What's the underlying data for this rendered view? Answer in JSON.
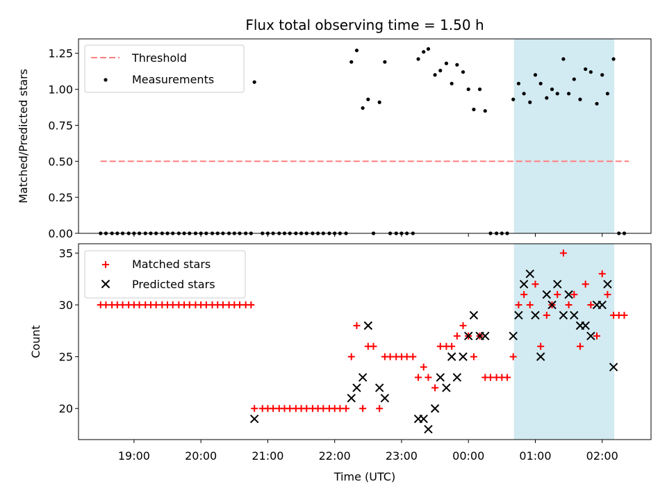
{
  "chart_data": [
    {
      "type": "scatter",
      "title": "Flux total observing time = 1.50 h",
      "xlabel": "",
      "ylabel": "Matched/Predicted stars",
      "ylim": [
        0,
        1.35
      ],
      "yticks": [
        "0.00",
        "0.25",
        "0.50",
        "0.75",
        "1.00",
        "1.25"
      ],
      "legend_position": "upper-left",
      "threshold": {
        "name": "Threshold",
        "value": 0.5,
        "x_start": -5.5,
        "x_end": 2.4,
        "color": "#ff7f7f"
      },
      "highlight_span": {
        "x_start": 0.68,
        "x_end": 2.18,
        "color": "#add8e6"
      },
      "series": [
        {
          "name": "Measurements",
          "color": "#000000",
          "points": [
            [
              -5.5,
              0
            ],
            [
              -5.42,
              0
            ],
            [
              -5.33,
              0
            ],
            [
              -5.25,
              0
            ],
            [
              -5.17,
              0
            ],
            [
              -5.08,
              0
            ],
            [
              -5.0,
              0
            ],
            [
              -4.92,
              0
            ],
            [
              -4.83,
              0
            ],
            [
              -4.75,
              0
            ],
            [
              -4.67,
              0
            ],
            [
              -4.58,
              0
            ],
            [
              -4.5,
              0
            ],
            [
              -4.42,
              0
            ],
            [
              -4.33,
              0
            ],
            [
              -4.25,
              0
            ],
            [
              -4.17,
              0
            ],
            [
              -4.08,
              0
            ],
            [
              -4.0,
              0
            ],
            [
              -3.92,
              0
            ],
            [
              -3.83,
              0
            ],
            [
              -3.75,
              0
            ],
            [
              -3.67,
              0
            ],
            [
              -3.58,
              0
            ],
            [
              -3.5,
              0
            ],
            [
              -3.42,
              0
            ],
            [
              -3.33,
              0
            ],
            [
              -3.25,
              0
            ],
            [
              -3.2,
              1.05
            ],
            [
              -3.08,
              0
            ],
            [
              -3.0,
              0
            ],
            [
              -2.92,
              0
            ],
            [
              -2.83,
              0
            ],
            [
              -2.75,
              0
            ],
            [
              -2.67,
              0
            ],
            [
              -2.58,
              0
            ],
            [
              -2.5,
              0
            ],
            [
              -2.42,
              0
            ],
            [
              -2.33,
              0
            ],
            [
              -2.25,
              0
            ],
            [
              -2.17,
              0
            ],
            [
              -2.08,
              0
            ],
            [
              -2.0,
              0
            ],
            [
              -1.92,
              0
            ],
            [
              -1.83,
              0
            ],
            [
              -1.75,
              1.19
            ],
            [
              -1.67,
              1.27
            ],
            [
              -1.58,
              0.87
            ],
            [
              -1.5,
              0.93
            ],
            [
              -1.42,
              0
            ],
            [
              -1.33,
              0.91
            ],
            [
              -1.25,
              1.19
            ],
            [
              -1.17,
              0
            ],
            [
              -1.08,
              0
            ],
            [
              -1.0,
              0
            ],
            [
              -0.92,
              0
            ],
            [
              -0.83,
              0
            ],
            [
              -0.75,
              1.21
            ],
            [
              -0.67,
              1.26
            ],
            [
              -0.6,
              1.28
            ],
            [
              -0.5,
              1.1
            ],
            [
              -0.42,
              1.13
            ],
            [
              -0.33,
              1.18
            ],
            [
              -0.25,
              1.04
            ],
            [
              -0.17,
              1.17
            ],
            [
              -0.08,
              1.12
            ],
            [
              0.0,
              1.0
            ],
            [
              0.08,
              0.86
            ],
            [
              0.17,
              1.0
            ],
            [
              0.25,
              0.85
            ],
            [
              0.33,
              0
            ],
            [
              0.42,
              0
            ],
            [
              0.5,
              0
            ],
            [
              0.58,
              0
            ],
            [
              0.67,
              0.93
            ],
            [
              0.75,
              1.04
            ],
            [
              0.83,
              0.97
            ],
            [
              0.92,
              0.91
            ],
            [
              1.0,
              1.1
            ],
            [
              1.08,
              1.04
            ],
            [
              1.17,
              0.94
            ],
            [
              1.25,
              1.0
            ],
            [
              1.33,
              0.97
            ],
            [
              1.42,
              1.21
            ],
            [
              1.5,
              0.97
            ],
            [
              1.58,
              1.07
            ],
            [
              1.67,
              0.93
            ],
            [
              1.75,
              1.14
            ],
            [
              1.83,
              1.12
            ],
            [
              1.92,
              0.9
            ],
            [
              2.0,
              1.1
            ],
            [
              2.08,
              0.97
            ],
            [
              2.17,
              1.21
            ],
            [
              2.25,
              0
            ],
            [
              2.33,
              0
            ]
          ]
        }
      ]
    },
    {
      "type": "scatter",
      "title": "",
      "xlabel": "Time (UTC)",
      "ylabel": "Count",
      "ylim": [
        17,
        35.9
      ],
      "yticks": [
        "20",
        "25",
        "30",
        "35"
      ],
      "xlim": [
        -5.83,
        2.73
      ],
      "x_reference": "00:00",
      "xticks": [
        {
          "value": -5,
          "label": "19:00"
        },
        {
          "value": -4,
          "label": "20:00"
        },
        {
          "value": -3,
          "label": "21:00"
        },
        {
          "value": -2,
          "label": "22:00"
        },
        {
          "value": -1,
          "label": "23:00"
        },
        {
          "value": 0,
          "label": "00:00"
        },
        {
          "value": 1,
          "label": "01:00"
        },
        {
          "value": 2,
          "label": "02:00"
        }
      ],
      "legend_position": "upper-left",
      "highlight_span": {
        "x_start": 0.68,
        "x_end": 2.18,
        "color": "#add8e6"
      },
      "series": [
        {
          "name": "Matched stars",
          "marker": "+",
          "color": "#ff0000",
          "points": [
            [
              -5.5,
              30
            ],
            [
              -5.42,
              30
            ],
            [
              -5.33,
              30
            ],
            [
              -5.25,
              30
            ],
            [
              -5.17,
              30
            ],
            [
              -5.08,
              30
            ],
            [
              -5.0,
              30
            ],
            [
              -4.92,
              30
            ],
            [
              -4.83,
              30
            ],
            [
              -4.75,
              30
            ],
            [
              -4.67,
              30
            ],
            [
              -4.58,
              30
            ],
            [
              -4.5,
              30
            ],
            [
              -4.42,
              30
            ],
            [
              -4.33,
              30
            ],
            [
              -4.25,
              30
            ],
            [
              -4.17,
              30
            ],
            [
              -4.08,
              30
            ],
            [
              -4.0,
              30
            ],
            [
              -3.92,
              30
            ],
            [
              -3.83,
              30
            ],
            [
              -3.75,
              30
            ],
            [
              -3.67,
              30
            ],
            [
              -3.58,
              30
            ],
            [
              -3.5,
              30
            ],
            [
              -3.42,
              30
            ],
            [
              -3.33,
              30
            ],
            [
              -3.25,
              30
            ],
            [
              -3.2,
              20
            ],
            [
              -3.08,
              20
            ],
            [
              -3.0,
              20
            ],
            [
              -2.92,
              20
            ],
            [
              -2.83,
              20
            ],
            [
              -2.75,
              20
            ],
            [
              -2.67,
              20
            ],
            [
              -2.58,
              20
            ],
            [
              -2.5,
              20
            ],
            [
              -2.42,
              20
            ],
            [
              -2.33,
              20
            ],
            [
              -2.25,
              20
            ],
            [
              -2.17,
              20
            ],
            [
              -2.08,
              20
            ],
            [
              -2.0,
              20
            ],
            [
              -1.92,
              20
            ],
            [
              -1.83,
              20
            ],
            [
              -1.75,
              25
            ],
            [
              -1.67,
              28
            ],
            [
              -1.58,
              20
            ],
            [
              -1.5,
              26
            ],
            [
              -1.42,
              26
            ],
            [
              -1.33,
              20
            ],
            [
              -1.25,
              25
            ],
            [
              -1.17,
              25
            ],
            [
              -1.08,
              25
            ],
            [
              -1.0,
              25
            ],
            [
              -0.92,
              25
            ],
            [
              -0.83,
              25
            ],
            [
              -0.75,
              23
            ],
            [
              -0.67,
              24
            ],
            [
              -0.6,
              23
            ],
            [
              -0.5,
              22
            ],
            [
              -0.42,
              26
            ],
            [
              -0.33,
              26
            ],
            [
              -0.25,
              26
            ],
            [
              -0.17,
              27
            ],
            [
              -0.08,
              28
            ],
            [
              0.0,
              27
            ],
            [
              0.08,
              25
            ],
            [
              0.17,
              27
            ],
            [
              0.25,
              23
            ],
            [
              0.33,
              23
            ],
            [
              0.42,
              23
            ],
            [
              0.5,
              23
            ],
            [
              0.58,
              23
            ],
            [
              0.67,
              25
            ],
            [
              0.75,
              30
            ],
            [
              0.83,
              31
            ],
            [
              0.92,
              30
            ],
            [
              1.0,
              32
            ],
            [
              1.08,
              26
            ],
            [
              1.17,
              29
            ],
            [
              1.25,
              30
            ],
            [
              1.33,
              31
            ],
            [
              1.42,
              35
            ],
            [
              1.5,
              30
            ],
            [
              1.58,
              31
            ],
            [
              1.67,
              26
            ],
            [
              1.75,
              32
            ],
            [
              1.83,
              30
            ],
            [
              1.92,
              27
            ],
            [
              2.0,
              33
            ],
            [
              2.08,
              31
            ],
            [
              2.17,
              29
            ],
            [
              2.25,
              29
            ],
            [
              2.33,
              29
            ]
          ]
        },
        {
          "name": "Predicted stars",
          "marker": "x",
          "color": "#000000",
          "points": [
            [
              -3.2,
              19
            ],
            [
              -1.75,
              21
            ],
            [
              -1.67,
              22
            ],
            [
              -1.58,
              23
            ],
            [
              -1.5,
              28
            ],
            [
              -1.33,
              22
            ],
            [
              -1.25,
              21
            ],
            [
              -0.75,
              19
            ],
            [
              -0.67,
              19
            ],
            [
              -0.6,
              18
            ],
            [
              -0.5,
              20
            ],
            [
              -0.42,
              23
            ],
            [
              -0.33,
              22
            ],
            [
              -0.25,
              25
            ],
            [
              -0.17,
              23
            ],
            [
              -0.08,
              25
            ],
            [
              0.0,
              27
            ],
            [
              0.08,
              29
            ],
            [
              0.17,
              27
            ],
            [
              0.25,
              27
            ],
            [
              0.67,
              27
            ],
            [
              0.75,
              29
            ],
            [
              0.83,
              32
            ],
            [
              0.92,
              33
            ],
            [
              1.0,
              29
            ],
            [
              1.08,
              25
            ],
            [
              1.17,
              31
            ],
            [
              1.25,
              30
            ],
            [
              1.33,
              32
            ],
            [
              1.42,
              29
            ],
            [
              1.5,
              31
            ],
            [
              1.58,
              29
            ],
            [
              1.67,
              28
            ],
            [
              1.75,
              28
            ],
            [
              1.83,
              27
            ],
            [
              1.92,
              30
            ],
            [
              2.0,
              30
            ],
            [
              2.08,
              32
            ],
            [
              2.17,
              24
            ]
          ]
        }
      ]
    }
  ]
}
